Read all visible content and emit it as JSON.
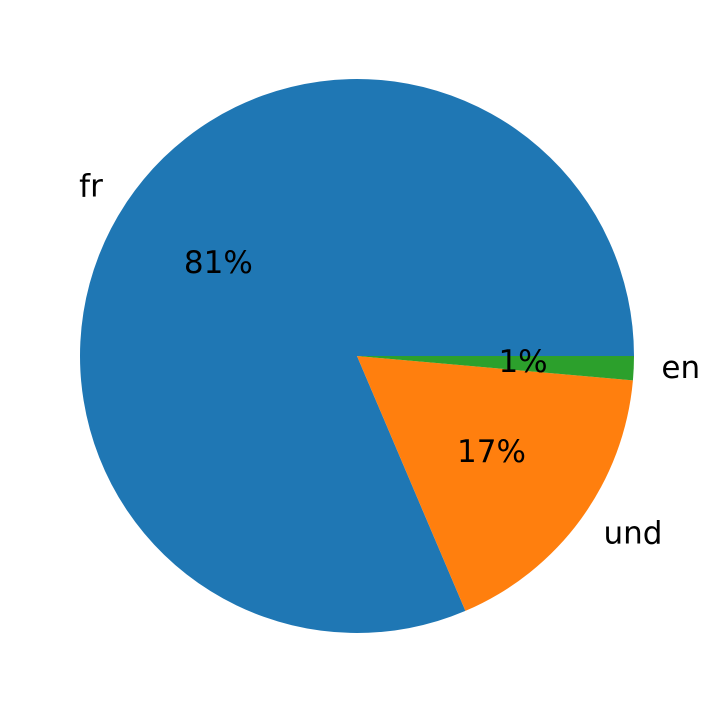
{
  "chart_data": {
    "type": "pie",
    "categories": [
      "fr",
      "und",
      "en"
    ],
    "values": [
      81.4,
      17.2,
      1.4
    ],
    "value_labels": [
      "81%",
      "17%",
      "1%"
    ],
    "colors": [
      "#1f77b4",
      "#ff7f0e",
      "#2ca02c"
    ],
    "start_angle": 0
  }
}
